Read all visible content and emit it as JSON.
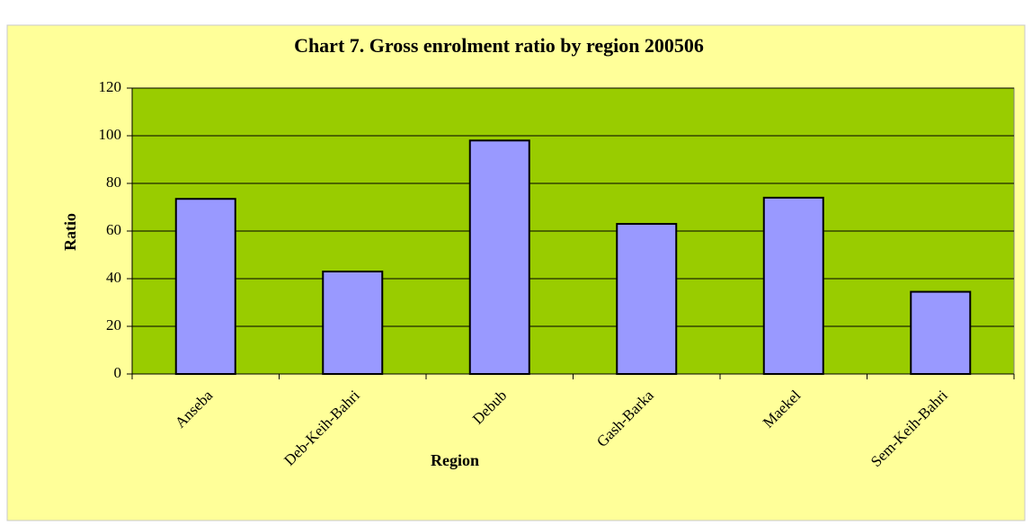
{
  "chart_data": {
    "type": "bar",
    "title": "Chart 7. Gross enrolment ratio by region 200506",
    "x_label": "Region",
    "y_label": "Ratio",
    "categories": [
      "Anseba",
      "Deb-Keih-Bahri",
      "Debub",
      "Gash-Barka",
      "Maekel",
      "Sem-Keih-Bahri"
    ],
    "values": [
      73.5,
      43,
      98,
      63,
      74,
      34.5
    ],
    "color": "#9999ff",
    "background": "#99cc00",
    "ylim": [
      0,
      120
    ],
    "yticks": [
      0,
      20,
      40,
      60,
      80,
      100,
      120
    ],
    "grid": true
  }
}
